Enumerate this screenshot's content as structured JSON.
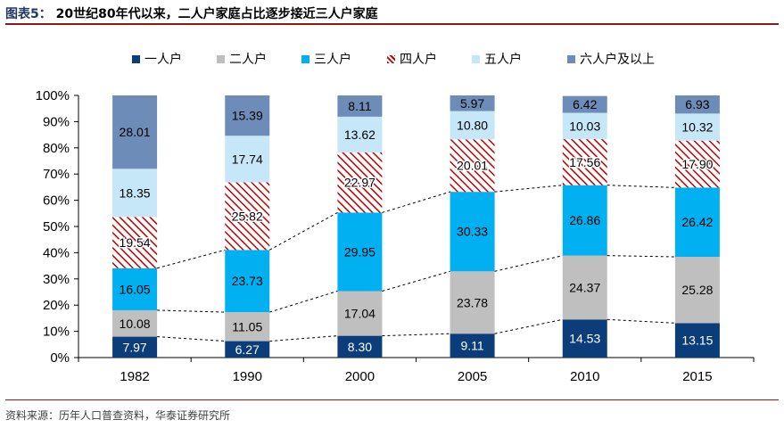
{
  "title": {
    "figure_label": "图表5：",
    "text": "20世纪80年代以来，二人户家庭占比逐步接近三人户家庭"
  },
  "source": "资料来源：历年人口普查资料，华泰证券研究所",
  "chart_data": {
    "type": "bar",
    "stacked": true,
    "categories": [
      "1982",
      "1990",
      "2000",
      "2005",
      "2010",
      "2015"
    ],
    "ylim": [
      0,
      100
    ],
    "yticks": [
      "0%",
      "10%",
      "20%",
      "30%",
      "40%",
      "50%",
      "60%",
      "70%",
      "80%",
      "90%",
      "100%"
    ],
    "legend_position": "top",
    "connector_lines": "dashed lines joining the tops of the 一人户, 二人户 and 三人户 segments across years",
    "series": [
      {
        "name": "一人户",
        "color": "#0b3d7a",
        "text_color": "#ffffff",
        "pattern": "solid",
        "values": [
          7.97,
          6.27,
          8.3,
          9.11,
          14.53,
          13.15
        ],
        "labels": [
          "7.97",
          "6.27",
          "8.30",
          "9.11",
          "14.53",
          "13.15"
        ]
      },
      {
        "name": "二人户",
        "color": "#bfbfbf",
        "text_color": "#000000",
        "pattern": "solid",
        "values": [
          10.08,
          11.05,
          17.04,
          23.78,
          24.37,
          25.28
        ],
        "labels": [
          "10.08",
          "11.05",
          "17.04",
          "23.78",
          "24.37",
          "25.28"
        ]
      },
      {
        "name": "三人户",
        "color": "#00b0f0",
        "text_color": "#000000",
        "pattern": "solid",
        "values": [
          16.05,
          23.73,
          29.95,
          30.33,
          26.86,
          26.42
        ],
        "labels": [
          "16.05",
          "23.73",
          "29.95",
          "30.33",
          "26.86",
          "26.42"
        ]
      },
      {
        "name": "四人户",
        "color": "#c00000",
        "text_color": "#000000",
        "pattern": "diagonal-hatch",
        "values": [
          19.54,
          25.82,
          22.97,
          20.01,
          17.56,
          17.9
        ],
        "labels": [
          "19.54",
          "25.82",
          "22.97",
          "20.01",
          "17.56",
          "17.90"
        ]
      },
      {
        "name": "五人户",
        "color": "#c6e7f8",
        "text_color": "#000000",
        "pattern": "solid",
        "values": [
          18.35,
          17.74,
          13.62,
          10.8,
          10.03,
          10.32
        ],
        "labels": [
          "18.35",
          "17.74",
          "13.62",
          "10.80",
          "10.03",
          "10.32"
        ]
      },
      {
        "name": "六人户及以上",
        "color": "#6d8db8",
        "text_color": "#000000",
        "pattern": "solid",
        "values": [
          28.01,
          15.39,
          8.11,
          5.97,
          6.42,
          6.93
        ],
        "labels": [
          "28.01",
          "15.39",
          "8.11",
          "5.97",
          "6.42",
          "6.93"
        ]
      }
    ]
  }
}
